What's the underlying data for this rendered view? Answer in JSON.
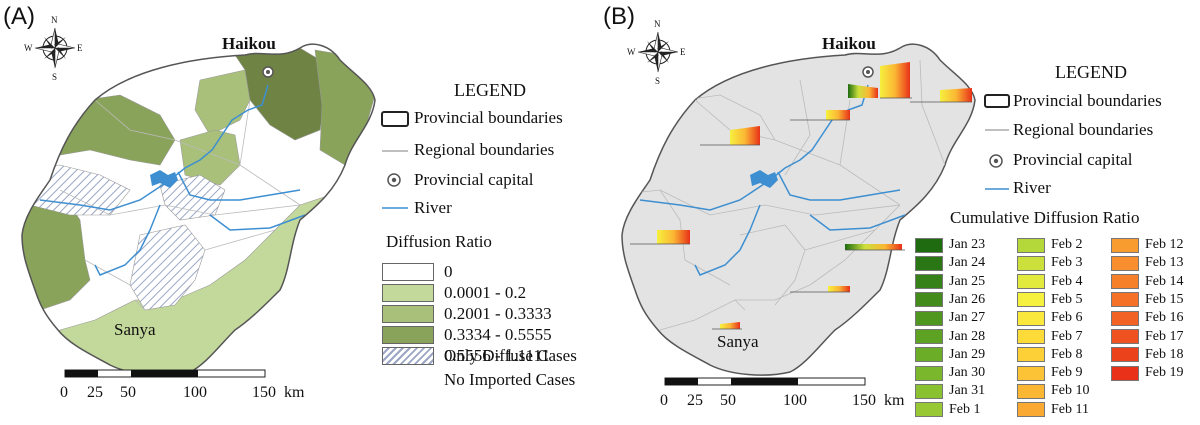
{
  "panels": [
    {
      "label": "(A)",
      "cities": {
        "capital": "Haikou",
        "south": "Sanya"
      },
      "legend": {
        "title": "LEGEND",
        "provincial": "Provincial boundaries",
        "regional": "Regional boundaries",
        "capital": "Provincial capital",
        "river": "River",
        "ratio_title": "Diffusion Ratio",
        "classes": [
          {
            "label": "0",
            "color": "#ffffff"
          },
          {
            "label": "0.0001 - 0.2",
            "color": "#c3d99b"
          },
          {
            "label": "0.2001 - 0.3333",
            "color": "#a9c07a"
          },
          {
            "label": "0.3334 - 0.5555",
            "color": "#8aa35a"
          },
          {
            "label": "0.5556 - 1.1111",
            "color": "#6f8444"
          }
        ],
        "hatch_line1": "Only Diffuse Cases",
        "hatch_line2": "No Imported Cases"
      },
      "scale": {
        "ticks": [
          "0",
          "25",
          "50",
          "100",
          "150"
        ],
        "unit": "km"
      }
    },
    {
      "label": "(B)",
      "cities": {
        "capital": "Haikou",
        "south": "Sanya"
      },
      "legend": {
        "title": "LEGEND",
        "provincial": "Provincial boundaries",
        "regional": "Regional boundaries",
        "capital": "Provincial capital",
        "river": "River",
        "cum_title": "Cumulative Diffusion Ratio",
        "dates_col1": [
          {
            "label": "Jan 23",
            "color": "#1e6b10"
          },
          {
            "label": "Jan 24",
            "color": "#2a7614"
          },
          {
            "label": "Jan 25",
            "color": "#368118"
          },
          {
            "label": "Jan 26",
            "color": "#438c1c"
          },
          {
            "label": "Jan 27",
            "color": "#509720"
          },
          {
            "label": "Jan 28",
            "color": "#5ea224"
          },
          {
            "label": "Jan 29",
            "color": "#6cad28"
          },
          {
            "label": "Jan 30",
            "color": "#7ab72c"
          },
          {
            "label": "Jan 31",
            "color": "#89c130"
          },
          {
            "label": "Feb 1",
            "color": "#98c934"
          }
        ],
        "dates_col2": [
          {
            "label": "Feb 2",
            "color": "#b4d83a"
          },
          {
            "label": "Feb 3",
            "color": "#cce03c"
          },
          {
            "label": "Feb 4",
            "color": "#e3ea3e"
          },
          {
            "label": "Feb 5",
            "color": "#f6f03e"
          },
          {
            "label": "Feb 6",
            "color": "#fbe83c"
          },
          {
            "label": "Feb 7",
            "color": "#fddc3a"
          },
          {
            "label": "Feb 8",
            "color": "#fdd038"
          },
          {
            "label": "Feb 9",
            "color": "#fcc336"
          },
          {
            "label": "Feb 10",
            "color": "#fbb634"
          },
          {
            "label": "Feb 11",
            "color": "#faa932"
          }
        ],
        "dates_col3": [
          {
            "label": "Feb 12",
            "color": "#f99c30"
          },
          {
            "label": "Feb 13",
            "color": "#f88e2d"
          },
          {
            "label": "Feb 14",
            "color": "#f6802a"
          },
          {
            "label": "Feb 15",
            "color": "#f47127"
          },
          {
            "label": "Feb 16",
            "color": "#f26224"
          },
          {
            "label": "Feb 17",
            "color": "#ef5220"
          },
          {
            "label": "Feb 18",
            "color": "#ec421c"
          },
          {
            "label": "Feb 19",
            "color": "#e83118"
          }
        ]
      },
      "scale": {
        "ticks": [
          "0",
          "25",
          "50",
          "100",
          "150"
        ],
        "unit": "km"
      }
    }
  ],
  "compass": {
    "n": "N",
    "s": "S",
    "e": "E",
    "w": "W"
  },
  "colors": {
    "island_b": "#e3e3e3",
    "river": "#3d8fd1",
    "outline": "#555555"
  }
}
